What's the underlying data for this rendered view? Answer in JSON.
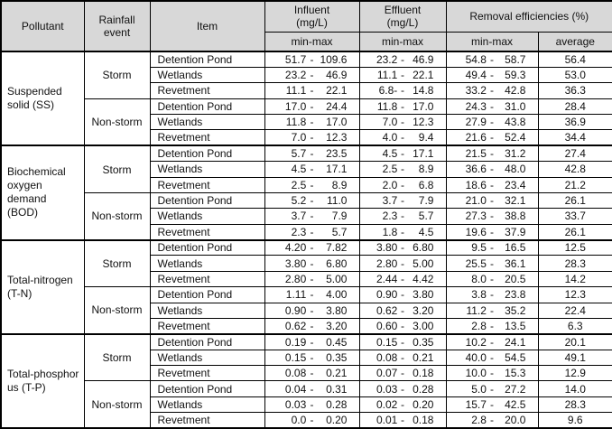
{
  "header": {
    "pollutant": "Pollutant",
    "rainfall_event": "Rainfall event",
    "item": "Item",
    "influent": {
      "label": "Influent",
      "unit": "(mg/L)"
    },
    "effluent": {
      "label": "Effluent",
      "unit": "(mg/L)"
    },
    "removal": "Removal  efficiencies  (%)",
    "min_max": "min-max",
    "average": "average"
  },
  "range_separator": "-",
  "colors": {
    "header_bg": "#d8d8d8",
    "border": "#000000",
    "text": "#111111"
  },
  "groups": [
    {
      "pollutant_lines": [
        "Suspended",
        "solid  (SS)"
      ],
      "events": [
        {
          "event": "Storm",
          "rows": [
            {
              "item": "Detention Pond",
              "influent": {
                "min": "51.7",
                "max": "109.6"
              },
              "effluent": {
                "min": "23.2",
                "max": "46.9"
              },
              "removal": {
                "min": "54.8",
                "max": "58.7"
              },
              "average": "56.4"
            },
            {
              "item": "Wetlands",
              "influent": {
                "min": "23.2",
                "max": "46.9"
              },
              "effluent": {
                "min": "11.1",
                "max": "22.1"
              },
              "removal": {
                "min": "49.4",
                "max": "59.3"
              },
              "average": "53.0"
            },
            {
              "item": "Revetment",
              "influent": {
                "min": "11.1",
                "max": "22.1"
              },
              "effluent": {
                "min": "6.8-",
                "max": "14.8"
              },
              "removal": {
                "min": "33.2",
                "max": "42.8"
              },
              "average": "36.3"
            }
          ]
        },
        {
          "event": "Non-storm",
          "rows": [
            {
              "item": "Detention Pond",
              "influent": {
                "min": "17.0",
                "max": "24.4"
              },
              "effluent": {
                "min": "11.8",
                "max": "17.0"
              },
              "removal": {
                "min": "24.3",
                "max": "31.0"
              },
              "average": "28.4"
            },
            {
              "item": "Wetlands",
              "influent": {
                "min": "11.8",
                "max": "17.0"
              },
              "effluent": {
                "min": "7.0",
                "max": "12.3"
              },
              "removal": {
                "min": "27.9",
                "max": "43.8"
              },
              "average": "36.9"
            },
            {
              "item": "Revetment",
              "influent": {
                "min": "7.0",
                "max": "12.3"
              },
              "effluent": {
                "min": "4.0",
                "max": "9.4"
              },
              "removal": {
                "min": "21.6",
                "max": "52.4"
              },
              "average": "34.4"
            }
          ]
        }
      ]
    },
    {
      "pollutant_lines": [
        "Biochemical",
        "oxygen",
        "demand",
        "(BOD)"
      ],
      "events": [
        {
          "event": "Storm",
          "rows": [
            {
              "item": "Detention Pond",
              "influent": {
                "min": "5.7",
                "max": "23.5"
              },
              "effluent": {
                "min": "4.5",
                "max": "17.1"
              },
              "removal": {
                "min": "21.5",
                "max": "31.2"
              },
              "average": "27.4"
            },
            {
              "item": "Wetlands",
              "influent": {
                "min": "4.5",
                "max": "17.1"
              },
              "effluent": {
                "min": "2.5",
                "max": "8.9"
              },
              "removal": {
                "min": "36.6",
                "max": "48.0"
              },
              "average": "42.8"
            },
            {
              "item": "Revetment",
              "influent": {
                "min": "2.5",
                "max": "8.9"
              },
              "effluent": {
                "min": "2.0",
                "max": "6.8"
              },
              "removal": {
                "min": "18.6",
                "max": "23.4"
              },
              "average": "21.2"
            }
          ]
        },
        {
          "event": "Non-storm",
          "rows": [
            {
              "item": "Detention Pond",
              "influent": {
                "min": "5.2",
                "max": "11.0"
              },
              "effluent": {
                "min": "3.7",
                "max": "7.9"
              },
              "removal": {
                "min": "21.0",
                "max": "32.1"
              },
              "average": "26.1"
            },
            {
              "item": "Wetlands",
              "influent": {
                "min": "3.7",
                "max": "7.9"
              },
              "effluent": {
                "min": "2.3",
                "max": "5.7"
              },
              "removal": {
                "min": "27.3",
                "max": "38.8"
              },
              "average": "33.7"
            },
            {
              "item": "Revetment",
              "influent": {
                "min": "2.3",
                "max": "5.7"
              },
              "effluent": {
                "min": "1.8",
                "max": "4.5"
              },
              "removal": {
                "min": "19.6",
                "max": "37.9"
              },
              "average": "26.1"
            }
          ]
        }
      ]
    },
    {
      "pollutant_lines": [
        "Total-nitrogen",
        "(T-N)"
      ],
      "events": [
        {
          "event": "Storm",
          "rows": [
            {
              "item": "Detention Pond",
              "influent": {
                "min": "4.20",
                "max": "7.82"
              },
              "effluent": {
                "min": "3.80",
                "max": "6.80"
              },
              "removal": {
                "min": "9.5",
                "max": "16.5"
              },
              "average": "12.5"
            },
            {
              "item": "Wetlands",
              "influent": {
                "min": "3.80",
                "max": "6.80"
              },
              "effluent": {
                "min": "2.80",
                "max": "5.00"
              },
              "removal": {
                "min": "25.5",
                "max": "36.1"
              },
              "average": "28.3"
            },
            {
              "item": "Revetment",
              "influent": {
                "min": "2.80",
                "max": "5.00"
              },
              "effluent": {
                "min": "2.44",
                "max": "4.42"
              },
              "removal": {
                "min": "8.0",
                "max": "20.5"
              },
              "average": "14.2"
            }
          ]
        },
        {
          "event": "Non-storm",
          "rows": [
            {
              "item": "Detention Pond",
              "influent": {
                "min": "1.11",
                "max": "4.00"
              },
              "effluent": {
                "min": "0.90",
                "max": "3.80"
              },
              "removal": {
                "min": "3.8",
                "max": "23.8"
              },
              "average": "12.3"
            },
            {
              "item": "Wetlands",
              "influent": {
                "min": "0.90",
                "max": "3.80"
              },
              "effluent": {
                "min": "0.62",
                "max": "3.20"
              },
              "removal": {
                "min": "11.2",
                "max": "35.2"
              },
              "average": "22.4"
            },
            {
              "item": "Revetment",
              "influent": {
                "min": "0.62",
                "max": "3.20"
              },
              "effluent": {
                "min": "0.60",
                "max": "3.00"
              },
              "removal": {
                "min": "2.8",
                "max": "13.5"
              },
              "average": "6.3"
            }
          ]
        }
      ]
    },
    {
      "pollutant_lines": [
        "Total-phosphor",
        "us  (T-P)"
      ],
      "events": [
        {
          "event": "Storm",
          "rows": [
            {
              "item": "Detention Pond",
              "influent": {
                "min": "0.19",
                "max": "0.45"
              },
              "effluent": {
                "min": "0.15",
                "max": "0.35"
              },
              "removal": {
                "min": "10.2",
                "max": "24.1"
              },
              "average": "20.1"
            },
            {
              "item": "Wetlands",
              "influent": {
                "min": "0.15",
                "max": "0.35"
              },
              "effluent": {
                "min": "0.08",
                "max": "0.21"
              },
              "removal": {
                "min": "40.0",
                "max": "54.5"
              },
              "average": "49.1"
            },
            {
              "item": "Revetment",
              "influent": {
                "min": "0.08",
                "max": "0.21"
              },
              "effluent": {
                "min": "0.07",
                "max": "0.18"
              },
              "removal": {
                "min": "10.0",
                "max": "15.3"
              },
              "average": "12.9"
            }
          ]
        },
        {
          "event": "Non-storm",
          "rows": [
            {
              "item": "Detention Pond",
              "influent": {
                "min": "0.04",
                "max": "0.31"
              },
              "effluent": {
                "min": "0.03",
                "max": "0.28"
              },
              "removal": {
                "min": "5.0",
                "max": "27.2"
              },
              "average": "14.0"
            },
            {
              "item": "Wetlands",
              "influent": {
                "min": "0.03",
                "max": "0.28"
              },
              "effluent": {
                "min": "0.02",
                "max": "0.20"
              },
              "removal": {
                "min": "15.7",
                "max": "42.5"
              },
              "average": "28.3"
            },
            {
              "item": "Revetment",
              "influent": {
                "min": "0.0",
                "max": "0.20"
              },
              "effluent": {
                "min": "0.01",
                "max": "0.18"
              },
              "removal": {
                "min": "2.8",
                "max": "20.0"
              },
              "average": "9.6"
            }
          ]
        }
      ]
    }
  ]
}
